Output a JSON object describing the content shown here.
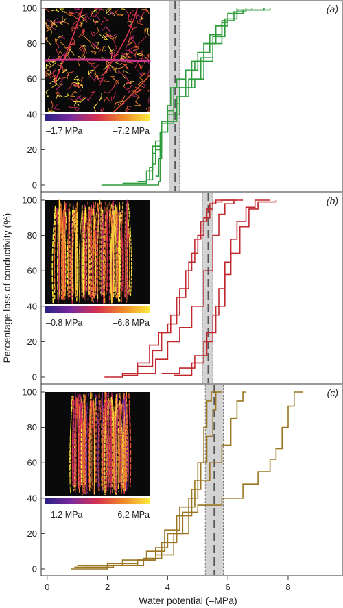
{
  "figure": {
    "ylabel": "Percentage loss of conductivity (%)",
    "xlabel": "Water potential (–MPa)",
    "xticks": [
      "0",
      "2",
      "4",
      "6",
      "8"
    ],
    "yticks": [
      "0",
      "20",
      "40",
      "60",
      "80",
      "100"
    ]
  },
  "chart_data": [
    {
      "type": "line",
      "panel_label": "(a)",
      "color": "#2e9b3c",
      "xlim": [
        -0.2,
        9.8
      ],
      "ylim": [
        0,
        100
      ],
      "grid": false,
      "shaded_band": [
        4.05,
        4.4
      ],
      "band_median": 4.25,
      "inset": {
        "type": "leaf",
        "scale_min": "–1.7 MPa",
        "scale_max": "–7.2 MPa"
      },
      "series": [
        {
          "points": [
            [
              1.8,
              0
            ],
            [
              3.6,
              0
            ],
            [
              3.7,
              2
            ],
            [
              3.75,
              30
            ],
            [
              3.8,
              35
            ],
            [
              4.0,
              42
            ],
            [
              4.2,
              46
            ],
            [
              4.4,
              50
            ],
            [
              4.6,
              55
            ],
            [
              4.9,
              60
            ],
            [
              5.2,
              70
            ],
            [
              5.5,
              80
            ],
            [
              5.8,
              92
            ],
            [
              6.0,
              97
            ],
            [
              6.3,
              99
            ],
            [
              7.2,
              100
            ]
          ]
        },
        {
          "points": [
            [
              3.6,
              5
            ],
            [
              3.7,
              15
            ],
            [
              3.8,
              30
            ],
            [
              4.0,
              45
            ],
            [
              4.1,
              55
            ],
            [
              4.3,
              60
            ],
            [
              4.6,
              65
            ],
            [
              4.9,
              70
            ],
            [
              5.2,
              80
            ],
            [
              5.6,
              90
            ],
            [
              6.0,
              97
            ],
            [
              6.5,
              99
            ],
            [
              7.4,
              100
            ]
          ]
        },
        {
          "points": [
            [
              2.5,
              1
            ],
            [
              3.3,
              3
            ],
            [
              3.4,
              10
            ],
            [
              3.5,
              18
            ],
            [
              3.6,
              25
            ],
            [
              3.8,
              30
            ],
            [
              4.0,
              40
            ],
            [
              4.4,
              55
            ],
            [
              4.8,
              70
            ],
            [
              5.2,
              80
            ],
            [
              5.6,
              90
            ],
            [
              6.0,
              97
            ],
            [
              6.3,
              100
            ]
          ]
        },
        {
          "points": [
            [
              3.0,
              2
            ],
            [
              3.3,
              8
            ],
            [
              3.5,
              22
            ],
            [
              3.8,
              35
            ],
            [
              4.2,
              55
            ],
            [
              4.6,
              65
            ],
            [
              5.0,
              75
            ],
            [
              5.4,
              85
            ],
            [
              5.8,
              93
            ],
            [
              6.2,
              98
            ],
            [
              6.6,
              100
            ]
          ]
        },
        {
          "points": [
            [
              3.3,
              3
            ],
            [
              3.5,
              12
            ],
            [
              3.6,
              20
            ],
            [
              3.8,
              36
            ],
            [
              4.3,
              50
            ],
            [
              4.7,
              60
            ],
            [
              5.1,
              72
            ],
            [
              5.5,
              84
            ],
            [
              5.9,
              94
            ],
            [
              6.3,
              99
            ],
            [
              6.8,
              100
            ]
          ]
        }
      ]
    },
    {
      "type": "line",
      "panel_label": "(b)",
      "color": "#c1272d",
      "xlim": [
        -0.2,
        9.8
      ],
      "ylim": [
        0,
        100
      ],
      "grid": false,
      "shaded_band": [
        5.15,
        5.5
      ],
      "band_median": 5.35,
      "inset": {
        "type": "stem",
        "scale_min": "–0.8 MPa",
        "scale_max": "–6.8 MPa"
      },
      "series": [
        {
          "points": [
            [
              1.9,
              0
            ],
            [
              2.5,
              2
            ],
            [
              3.0,
              8
            ],
            [
              3.4,
              18
            ],
            [
              3.7,
              25
            ],
            [
              4.0,
              30
            ],
            [
              4.3,
              45
            ],
            [
              4.6,
              60
            ],
            [
              4.8,
              70
            ],
            [
              5.0,
              80
            ],
            [
              5.2,
              90
            ],
            [
              5.4,
              98
            ],
            [
              5.6,
              100
            ],
            [
              6.3,
              100
            ]
          ]
        },
        {
          "points": [
            [
              2.5,
              1
            ],
            [
              3.0,
              6
            ],
            [
              3.5,
              15
            ],
            [
              3.8,
              25
            ],
            [
              4.1,
              35
            ],
            [
              4.4,
              50
            ],
            [
              4.7,
              65
            ],
            [
              4.9,
              78
            ],
            [
              5.1,
              88
            ],
            [
              5.3,
              95
            ],
            [
              5.5,
              99
            ],
            [
              5.8,
              100
            ],
            [
              6.5,
              100
            ]
          ]
        },
        {
          "points": [
            [
              3.0,
              2
            ],
            [
              3.6,
              10
            ],
            [
              4.0,
              20
            ],
            [
              4.4,
              28
            ],
            [
              4.8,
              40
            ],
            [
              5.2,
              60
            ],
            [
              5.5,
              80
            ],
            [
              5.7,
              92
            ],
            [
              5.9,
              98
            ],
            [
              6.2,
              100
            ]
          ]
        },
        {
          "points": [
            [
              4.2,
              1
            ],
            [
              4.8,
              8
            ],
            [
              5.2,
              20
            ],
            [
              5.5,
              35
            ],
            [
              5.7,
              50
            ],
            [
              5.9,
              65
            ],
            [
              6.1,
              78
            ],
            [
              6.3,
              88
            ],
            [
              6.6,
              96
            ],
            [
              6.9,
              100
            ],
            [
              7.4,
              100
            ]
          ]
        },
        {
          "points": [
            [
              3.8,
              2
            ],
            [
              4.4,
              5
            ],
            [
              4.9,
              12
            ],
            [
              5.3,
              25
            ],
            [
              5.6,
              40
            ],
            [
              5.9,
              58
            ],
            [
              6.1,
              70
            ],
            [
              6.4,
              85
            ],
            [
              6.7,
              95
            ],
            [
              7.0,
              99
            ],
            [
              7.6,
              100
            ]
          ]
        }
      ]
    },
    {
      "type": "line",
      "panel_label": "(c)",
      "color": "#9a7522",
      "xlim": [
        -0.2,
        9.8
      ],
      "ylim": [
        0,
        100
      ],
      "grid": false,
      "shaded_band": [
        5.25,
        5.85
      ],
      "band_median": 5.55,
      "inset": {
        "type": "stem",
        "scale_min": "–1.2 MPa",
        "scale_max": "–6.2 MPa"
      },
      "series": [
        {
          "points": [
            [
              0.9,
              1
            ],
            [
              2.0,
              3
            ],
            [
              3.0,
              5
            ],
            [
              3.6,
              8
            ],
            [
              4.2,
              20
            ],
            [
              4.7,
              40
            ],
            [
              5.0,
              60
            ],
            [
              5.2,
              80
            ],
            [
              5.3,
              95
            ],
            [
              5.45,
              100
            ],
            [
              5.6,
              100
            ]
          ]
        },
        {
          "points": [
            [
              1.2,
              1
            ],
            [
              2.2,
              2
            ],
            [
              3.2,
              6
            ],
            [
              3.8,
              15
            ],
            [
              4.3,
              30
            ],
            [
              4.8,
              45
            ],
            [
              5.1,
              60
            ],
            [
              5.3,
              75
            ],
            [
              5.5,
              90
            ],
            [
              5.6,
              100
            ],
            [
              5.8,
              100
            ]
          ]
        },
        {
          "points": [
            [
              1.0,
              2
            ],
            [
              2.5,
              5
            ],
            [
              3.3,
              10
            ],
            [
              3.9,
              22
            ],
            [
              4.4,
              35
            ],
            [
              4.9,
              50
            ],
            [
              5.4,
              60
            ],
            [
              5.8,
              70
            ],
            [
              6.1,
              85
            ],
            [
              6.3,
              95
            ],
            [
              6.5,
              100
            ],
            [
              6.6,
              100
            ]
          ]
        },
        {
          "points": [
            [
              0.8,
              0
            ],
            [
              2.0,
              2
            ],
            [
              3.0,
              5
            ],
            [
              3.6,
              12
            ],
            [
              4.0,
              20
            ],
            [
              4.5,
              32
            ],
            [
              5.0,
              36
            ],
            [
              5.8,
              40
            ],
            [
              6.5,
              48
            ],
            [
              7.0,
              55
            ],
            [
              7.4,
              62
            ],
            [
              7.6,
              68
            ],
            [
              7.8,
              80
            ],
            [
              8.0,
              92
            ],
            [
              8.2,
              100
            ],
            [
              8.5,
              100
            ]
          ]
        }
      ]
    }
  ]
}
